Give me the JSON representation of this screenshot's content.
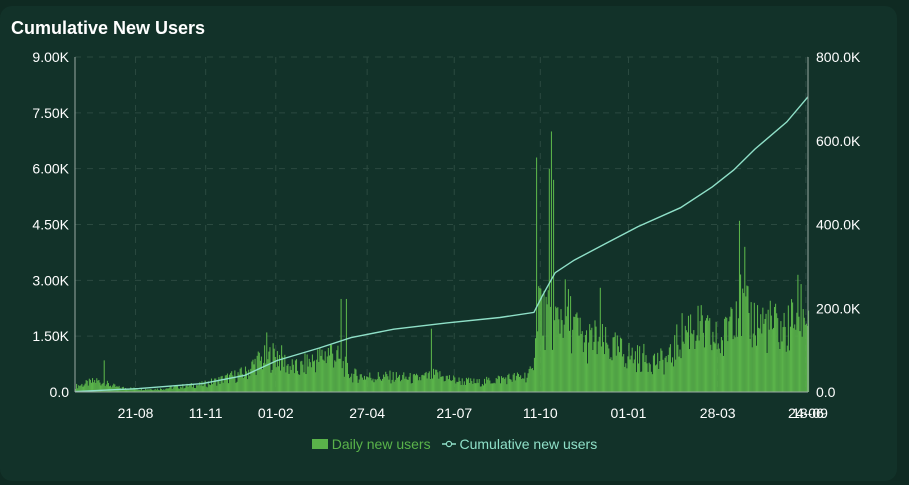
{
  "title": "Cumulative New Users",
  "colors": {
    "bars": "#5ab34a",
    "line": "#8fe0c8",
    "axis": "#9aa9a4",
    "grid": "#2b4a40"
  },
  "chart_data": {
    "type": "bar+line",
    "x_ticks": [
      "21-08",
      "11-11",
      "01-02",
      "27-04",
      "21-07",
      "11-10",
      "01-01",
      "28-03",
      "24-06",
      "18-09"
    ],
    "y_left_ticks": [
      "0.0",
      "1.50K",
      "3.00K",
      "4.50K",
      "6.00K",
      "7.50K",
      "9.00K"
    ],
    "y_right_ticks": [
      "0.0",
      "200.0K",
      "400.0K",
      "600.0K",
      "800.0K"
    ],
    "y_left_range": [
      0,
      9000
    ],
    "y_right_range": [
      0,
      800000
    ],
    "legend": {
      "bars_label": "Daily new users",
      "line_label": "Cumulative new users"
    },
    "series": [
      {
        "type": "bar",
        "name": "Daily new users",
        "axis": "left",
        "samples": [
          {
            "day": 0,
            "value": 150
          },
          {
            "day": 20,
            "value": 300
          },
          {
            "day": 40,
            "value": 120
          },
          {
            "day": 60,
            "value": 80
          },
          {
            "day": 80,
            "value": 80
          },
          {
            "day": 100,
            "value": 150
          },
          {
            "day": 120,
            "value": 200
          },
          {
            "day": 140,
            "value": 350
          },
          {
            "day": 160,
            "value": 500
          },
          {
            "day": 170,
            "value": 800
          },
          {
            "day": 180,
            "value": 900
          },
          {
            "day": 190,
            "value": 1000
          },
          {
            "day": 200,
            "value": 700
          },
          {
            "day": 210,
            "value": 600
          },
          {
            "day": 220,
            "value": 800
          },
          {
            "day": 230,
            "value": 900
          },
          {
            "day": 240,
            "value": 1100
          },
          {
            "day": 250,
            "value": 800
          },
          {
            "day": 260,
            "value": 450
          },
          {
            "day": 280,
            "value": 400
          },
          {
            "day": 300,
            "value": 400
          },
          {
            "day": 320,
            "value": 350
          },
          {
            "day": 340,
            "value": 450
          },
          {
            "day": 360,
            "value": 300
          },
          {
            "day": 380,
            "value": 250
          },
          {
            "day": 400,
            "value": 350
          },
          {
            "day": 420,
            "value": 400
          },
          {
            "day": 430,
            "value": 500
          },
          {
            "day": 435,
            "value": 2800
          },
          {
            "day": 440,
            "value": 2000
          },
          {
            "day": 450,
            "value": 1800
          },
          {
            "day": 460,
            "value": 2200
          },
          {
            "day": 470,
            "value": 1700
          },
          {
            "day": 480,
            "value": 1300
          },
          {
            "day": 490,
            "value": 1400
          },
          {
            "day": 500,
            "value": 1200
          },
          {
            "day": 510,
            "value": 1100
          },
          {
            "day": 520,
            "value": 1000
          },
          {
            "day": 530,
            "value": 900
          },
          {
            "day": 540,
            "value": 900
          },
          {
            "day": 550,
            "value": 800
          },
          {
            "day": 560,
            "value": 900
          },
          {
            "day": 570,
            "value": 1500
          },
          {
            "day": 580,
            "value": 1800
          },
          {
            "day": 590,
            "value": 1600
          },
          {
            "day": 600,
            "value": 1400
          },
          {
            "day": 610,
            "value": 1300
          },
          {
            "day": 620,
            "value": 2600
          },
          {
            "day": 630,
            "value": 2000
          },
          {
            "day": 640,
            "value": 1900
          },
          {
            "day": 650,
            "value": 1800
          },
          {
            "day": 660,
            "value": 1700
          },
          {
            "day": 670,
            "value": 1600
          },
          {
            "day": 680,
            "value": 2200
          },
          {
            "day": 690,
            "value": 2100
          }
        ],
        "peaks": [
          {
            "day": 27,
            "value": 850
          },
          {
            "day": 180,
            "value": 1600
          },
          {
            "day": 250,
            "value": 2500
          },
          {
            "day": 255,
            "value": 2500
          },
          {
            "day": 335,
            "value": 1700
          },
          {
            "day": 434,
            "value": 6300
          },
          {
            "day": 446,
            "value": 6000
          },
          {
            "day": 448,
            "value": 7000
          },
          {
            "day": 450,
            "value": 5700
          },
          {
            "day": 494,
            "value": 2800
          },
          {
            "day": 625,
            "value": 4600
          },
          {
            "day": 630,
            "value": 3900
          }
        ]
      },
      {
        "type": "line",
        "name": "Cumulative new users",
        "axis": "right",
        "points": [
          {
            "day": 0,
            "value": 1000
          },
          {
            "day": 60,
            "value": 8000
          },
          {
            "day": 120,
            "value": 20000
          },
          {
            "day": 160,
            "value": 40000
          },
          {
            "day": 190,
            "value": 75000
          },
          {
            "day": 230,
            "value": 105000
          },
          {
            "day": 260,
            "value": 130000
          },
          {
            "day": 300,
            "value": 150000
          },
          {
            "day": 350,
            "value": 165000
          },
          {
            "day": 400,
            "value": 178000
          },
          {
            "day": 432,
            "value": 190000
          },
          {
            "day": 440,
            "value": 230000
          },
          {
            "day": 452,
            "value": 285000
          },
          {
            "day": 470,
            "value": 315000
          },
          {
            "day": 500,
            "value": 355000
          },
          {
            "day": 530,
            "value": 395000
          },
          {
            "day": 570,
            "value": 440000
          },
          {
            "day": 600,
            "value": 490000
          },
          {
            "day": 620,
            "value": 530000
          },
          {
            "day": 640,
            "value": 580000
          },
          {
            "day": 670,
            "value": 645000
          },
          {
            "day": 690,
            "value": 705000
          }
        ]
      }
    ],
    "x_day_range": [
      0,
      690
    ],
    "x_tick_days": [
      57,
      123,
      189,
      275,
      357,
      438,
      521,
      605,
      688,
      690
    ]
  }
}
